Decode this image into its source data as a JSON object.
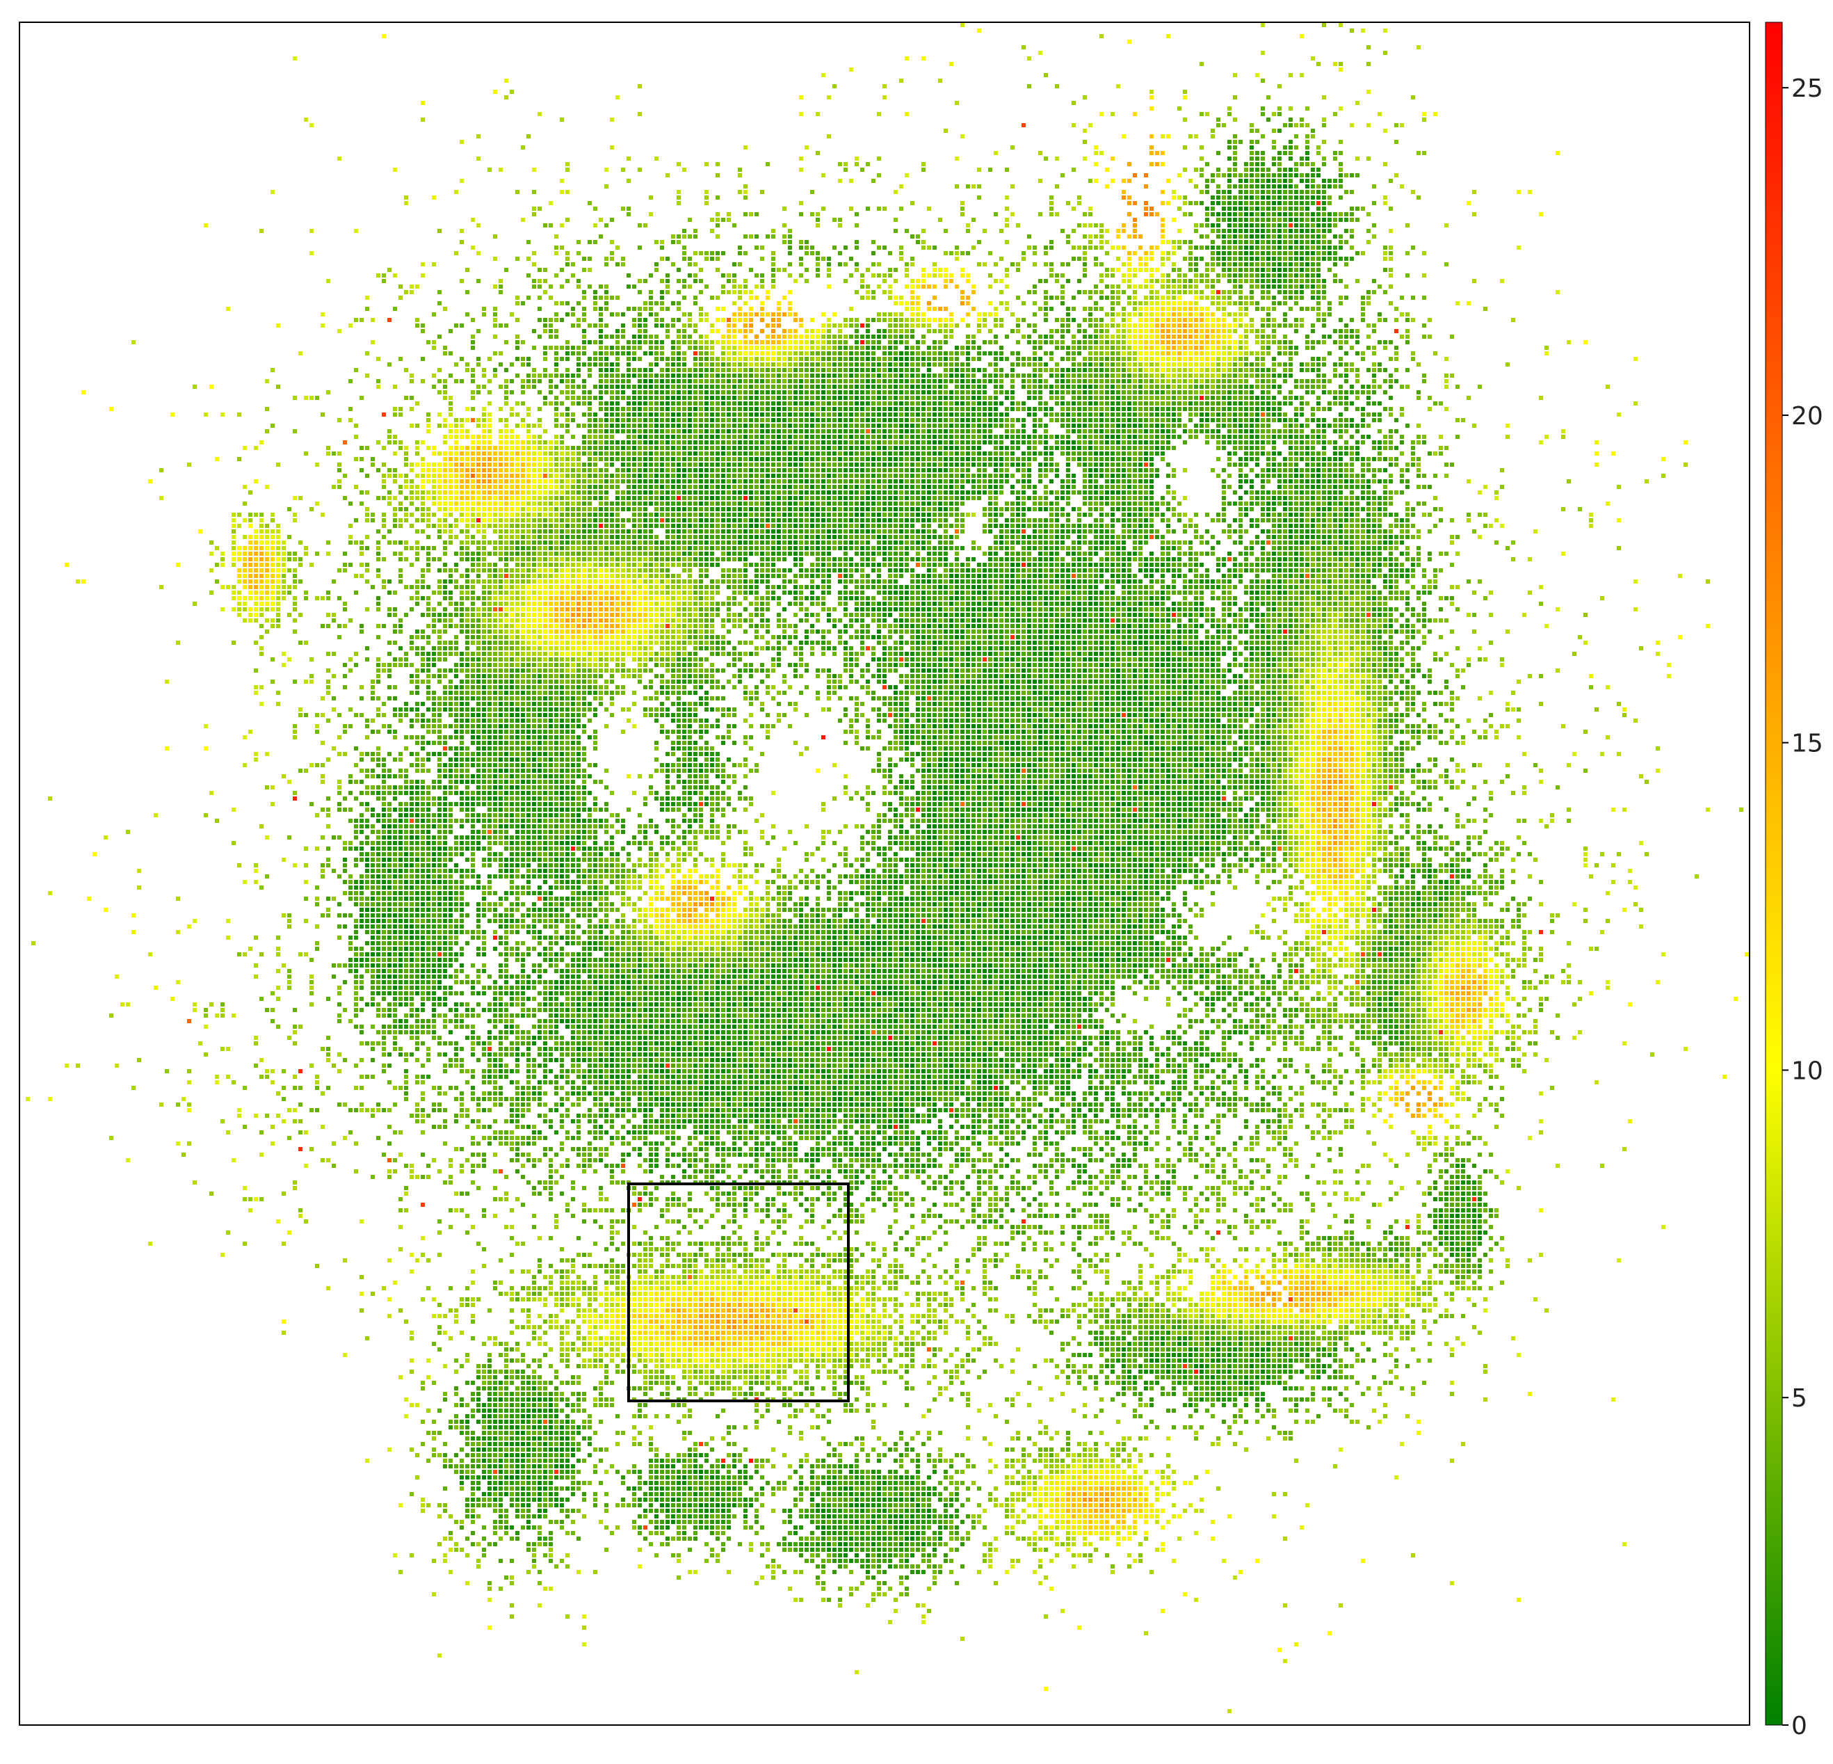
{
  "chart_data": {
    "type": "heatmap",
    "title": "",
    "xlabel": "",
    "ylabel": "",
    "grid": false,
    "axis_ticks_shown": false,
    "colorbar": {
      "min": 0,
      "max": 26,
      "ticks": [
        0,
        5,
        10,
        15,
        20,
        25
      ],
      "tick_labels": [
        "0",
        "5",
        "10",
        "15",
        "20",
        "25"
      ],
      "colormap": [
        {
          "value": 0,
          "color": "#008000"
        },
        {
          "value": 10,
          "color": "#ffff00"
        },
        {
          "value": 26,
          "color": "#ff0000"
        }
      ]
    },
    "highlighted_region": {
      "stroke_color": "#000000",
      "label": ""
    }
  }
}
